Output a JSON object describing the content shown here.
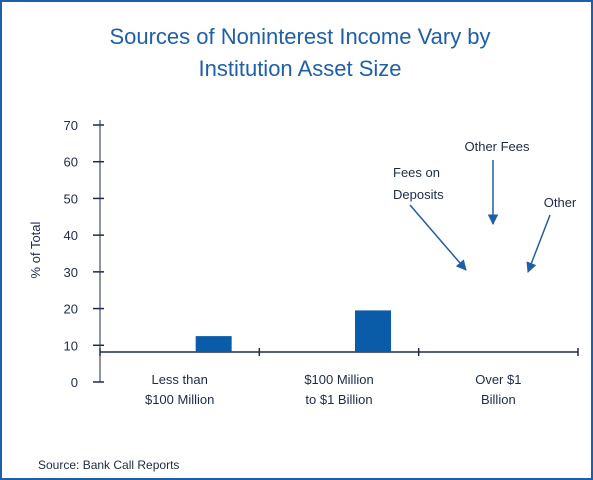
{
  "chart_data": {
    "type": "bar",
    "title": "Sources of Noninterest Income Vary by\nInstitution Asset Size",
    "y_label": "% of Total",
    "categories": [
      "Less than\n$100 Million",
      "$100 Million\nto $1 Billion",
      "Over $1\nBillion"
    ],
    "values": [
      12.5,
      19.5,
      null
    ],
    "color": "#0a5ca8",
    "ylim": [
      0,
      70
    ],
    "yticks": [
      0,
      10,
      20,
      30,
      40,
      50,
      60,
      70
    ],
    "annotations": [
      "Fees on\nDeposits",
      "Other Fees",
      "Other"
    ],
    "source": "Source:  Bank Call Reports"
  }
}
